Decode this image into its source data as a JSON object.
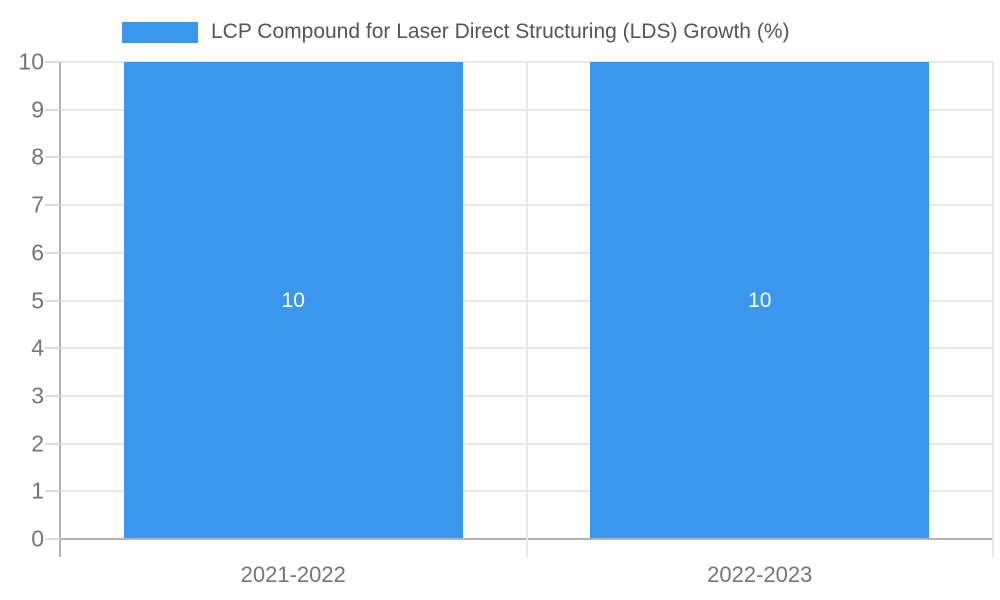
{
  "chart_data": {
    "type": "bar",
    "title": "",
    "legend": {
      "position": "top",
      "label": "LCP Compound for Laser Direct Structuring (LDS) Growth (%)"
    },
    "categories": [
      "2021-2022",
      "2022-2023"
    ],
    "series": [
      {
        "name": "LCP Compound for Laser Direct Structuring (LDS) Growth (%)",
        "values": [
          10,
          10
        ]
      }
    ],
    "bar_value_labels": [
      "10",
      "10"
    ],
    "xlabel": "",
    "ylabel": "",
    "ylim": [
      0,
      10
    ],
    "yticks": [
      0,
      1,
      2,
      3,
      4,
      5,
      6,
      7,
      8,
      9,
      10
    ],
    "grid": true,
    "colors": {
      "bar": "#3b97eb",
      "grid": "#e7e7e7",
      "axis": "#b3b3b3",
      "tick": "#dcdcdc",
      "tick_label": "#757575",
      "legend_text": "#555555",
      "bar_label": "#ffffff",
      "background": "#ffffff"
    }
  }
}
